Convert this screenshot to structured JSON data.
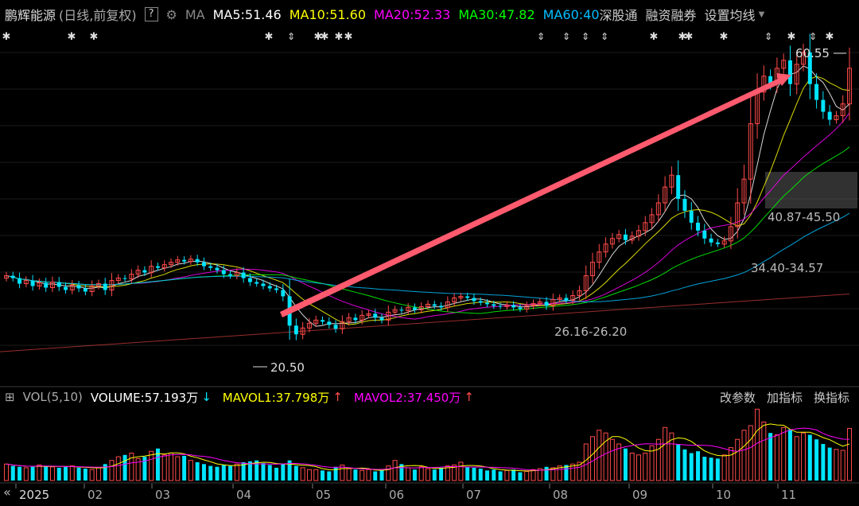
{
  "header": {
    "name": "鹏辉能源",
    "mode": "(日线,前复权)",
    "help": "?",
    "ma_label": "MA",
    "ma5": "MA5:51.46",
    "ma10": "MA10:51.60",
    "ma20": "MA20:52.33",
    "ma30": "MA30:47.82",
    "ma60": "MA60:40",
    "btn_hk": "深股通",
    "btn_margin": "融资融券",
    "btn_settings": "设置均线",
    "colors": {
      "ma5": "#ffffff",
      "ma10": "#ffff00",
      "ma20": "#ff00ff",
      "ma30": "#00ff00",
      "ma60": "#00bfff"
    }
  },
  "volume_header": {
    "toggle": "⊞",
    "label": "VOL(5,10)",
    "volume": "VOLUME:57.193万",
    "mavol1": "MAVOL1:37.798万",
    "mavol2": "MAVOL2:37.450万",
    "btn_params": "改参数",
    "btn_add": "加指标",
    "btn_switch": "换指标"
  },
  "annotations": {
    "high": "60.55",
    "low": "20.50",
    "range1": "40.87-45.50",
    "range2": "34.40-34.57",
    "range3": "26.16-26.20"
  },
  "footer": {
    "scroll": "«",
    "months": [
      "2025",
      "02",
      "03",
      "04",
      "05",
      "06",
      "07",
      "08",
      "09",
      "10",
      "11"
    ]
  },
  "chart_data": {
    "type": "candlestick",
    "price_axis": {
      "min": 18,
      "max": 62
    },
    "high": 60.55,
    "low": 20.5,
    "closes": [
      30.8,
      30.5,
      29.8,
      30.2,
      29.5,
      29.9,
      29.3,
      30.0,
      29.4,
      29.0,
      29.6,
      29.2,
      28.8,
      29.5,
      29.8,
      29.0,
      30.2,
      30.5,
      30.4,
      31.0,
      31.5,
      31.2,
      32.0,
      31.8,
      32.2,
      32.5,
      32.8,
      32.6,
      32.9,
      32.5,
      32.0,
      31.8,
      31.5,
      31.0,
      30.8,
      31.2,
      30.5,
      30.0,
      29.8,
      29.5,
      29.2,
      29.0,
      28.2,
      24.5,
      23.4,
      24.2,
      24.8,
      25.2,
      25.0,
      24.6,
      24.1,
      25.0,
      25.5,
      25.2,
      25.8,
      26.0,
      25.5,
      25.2,
      26.2,
      26.5,
      26.4,
      26.8,
      26.5,
      26.9,
      27.2,
      27.0,
      26.8,
      27.5,
      28.0,
      28.2,
      28.0,
      27.6,
      27.4,
      27.2,
      27.0,
      26.9,
      27.1,
      26.8,
      26.6,
      27.0,
      27.3,
      27.5,
      27.0,
      27.8,
      28.0,
      27.7,
      28.3,
      28.9,
      30.8,
      32.5,
      33.8,
      34.8,
      35.5,
      36.0,
      35.3,
      35.8,
      36.5,
      37.5,
      38.5,
      40.0,
      42.0,
      43.5,
      40.5,
      39.0,
      37.5,
      36.5,
      35.5,
      35.0,
      34.8,
      35.2,
      37.0,
      40.0,
      43.0,
      50.0,
      54.0,
      56.0,
      55.0,
      57.0,
      58.0,
      55.0,
      57.5,
      59.0,
      55.0,
      53.0,
      51.5,
      50.5,
      51.0,
      52.5,
      57.0
    ],
    "volume_max": 80,
    "volumes": [
      18,
      16,
      15,
      14,
      15,
      17,
      16,
      15,
      14,
      15,
      16,
      14,
      13,
      12,
      14,
      18,
      22,
      26,
      28,
      30,
      24,
      26,
      32,
      35,
      28,
      30,
      26,
      27,
      22,
      20,
      18,
      16,
      15,
      17,
      16,
      18,
      20,
      21,
      22,
      19,
      17,
      14,
      18,
      22,
      16,
      14,
      12,
      12,
      11,
      10,
      15,
      17,
      13,
      12,
      11,
      12,
      10,
      11,
      16,
      22,
      18,
      14,
      12,
      15,
      13,
      12,
      14,
      16,
      17,
      20,
      15,
      14,
      13,
      11,
      12,
      10,
      11,
      12,
      9,
      10,
      12,
      13,
      15,
      14,
      16,
      17,
      18,
      20,
      40,
      48,
      55,
      52,
      45,
      40,
      35,
      30,
      28,
      30,
      38,
      45,
      58,
      52,
      40,
      34,
      30,
      32,
      26,
      25,
      24,
      28,
      36,
      45,
      55,
      60,
      78,
      64,
      52,
      50,
      58,
      56,
      48,
      52,
      50,
      45,
      40,
      36,
      34,
      33,
      57
    ],
    "moving_averages": [
      {
        "name": "MA5",
        "color": "#ffffff",
        "value": 51.46
      },
      {
        "name": "MA10",
        "color": "#ffff00",
        "value": 51.6
      },
      {
        "name": "MA20",
        "color": "#ff00ff",
        "value": 52.33
      },
      {
        "name": "MA30",
        "color": "#00ff00",
        "value": 47.82
      },
      {
        "name": "MA60",
        "color": "#00bfff",
        "value": 40
      }
    ],
    "annotated_ranges": [
      "40.87-45.50",
      "34.40-34.57",
      "26.16-26.20"
    ],
    "highlight_zone": [
      40.87,
      45.5
    ],
    "up_color": "#ff4a4a",
    "down_color": "#00e5ff"
  }
}
